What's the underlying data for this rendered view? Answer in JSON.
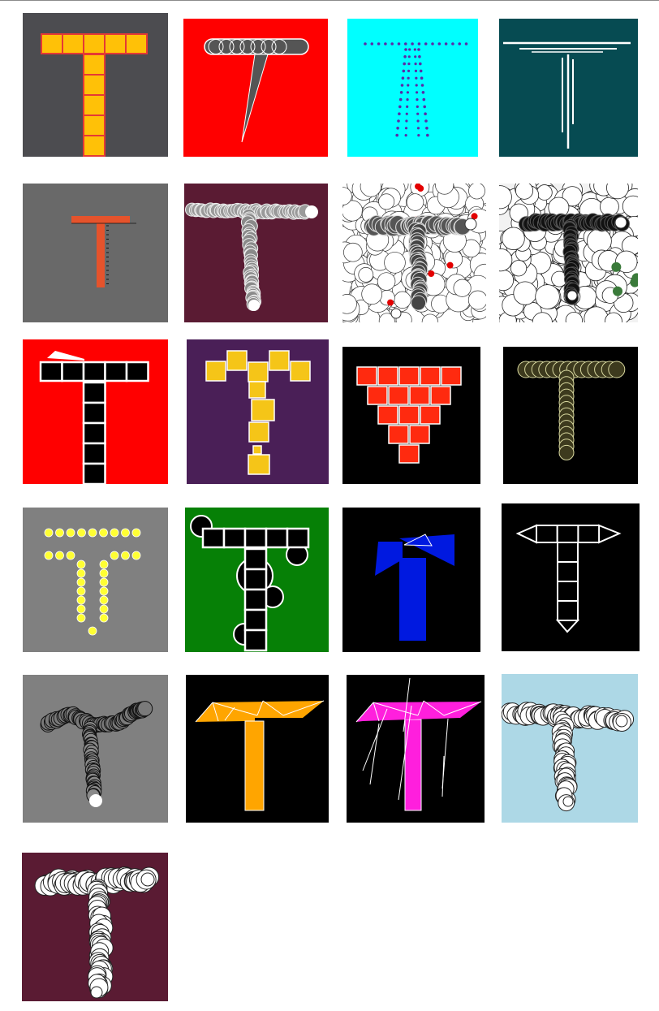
{
  "gallery": {
    "tiles": [
      {
        "style": "square-cells",
        "bg": "#4c4c50",
        "fg": "#ffc107",
        "stroke": "#e53935"
      },
      {
        "style": "pill-and-spike",
        "bg": "#ff0000",
        "fg": "#555555",
        "stroke": "#ffffff"
      },
      {
        "style": "dotted-outline",
        "bg": "#00ffff",
        "fg": "#5b2aa8"
      },
      {
        "style": "thin-lines",
        "bg": "#064b52",
        "fg": "#ffffff"
      },
      {
        "style": "ruled-bars",
        "bg": "#696969",
        "fg": "#e5532c",
        "stroke": "#111111"
      },
      {
        "style": "ring-trail",
        "bg": "#5a1b33",
        "fg": "#cccccc",
        "stroke": "#ffffff"
      },
      {
        "style": "ring-texture",
        "bg": "#ffffff",
        "fg": "#111111",
        "accent": "#e30000"
      },
      {
        "style": "ring-texture",
        "bg": "#f2f2f2",
        "fg": "#111111",
        "accent": "#3a7a3a"
      },
      {
        "style": "cells-with-flag",
        "bg": "#ff0000",
        "fg": "#000000",
        "stroke": "#ffffff"
      },
      {
        "style": "scattered-squares",
        "bg": "#4a1f57",
        "fg": "#f5c518",
        "stroke": "#ffffff"
      },
      {
        "style": "triangle-stack",
        "bg": "#000000",
        "fg": "#ff2a0f",
        "stroke": "#ffffff"
      },
      {
        "style": "circle-chain",
        "bg": "#000000",
        "fg": "#3d3a1e",
        "stroke": "#d9d9a0"
      },
      {
        "style": "dot-outline",
        "bg": "#808080",
        "fg": "#ffff33",
        "stroke": "#ffffff"
      },
      {
        "style": "cells-and-circles",
        "bg": "#068006",
        "fg": "#000000",
        "stroke": "#ffffff"
      },
      {
        "style": "angled-blocks",
        "bg": "#000000",
        "fg": "#0019e0",
        "stroke": "#ffffff"
      },
      {
        "style": "diamond-ends",
        "bg": "#000000",
        "fg": "#000000",
        "stroke": "#ffffff"
      },
      {
        "style": "curved-trail",
        "bg": "#808080",
        "fg": "#222222",
        "stroke": "#ffffff"
      },
      {
        "style": "fan-top",
        "bg": "#000000",
        "fg": "#ffa500",
        "stroke": "#ffffff"
      },
      {
        "style": "fan-top-lines",
        "bg": "#000000",
        "fg": "#ff1fdd",
        "stroke": "#ffffff"
      },
      {
        "style": "soft-trail",
        "bg": "#add8e6",
        "fg": "#ffffff",
        "stroke": "#222222"
      },
      {
        "style": "soft-trail",
        "bg": "#5a1b33",
        "fg": "#ffffff",
        "stroke": "#222222"
      }
    ]
  }
}
